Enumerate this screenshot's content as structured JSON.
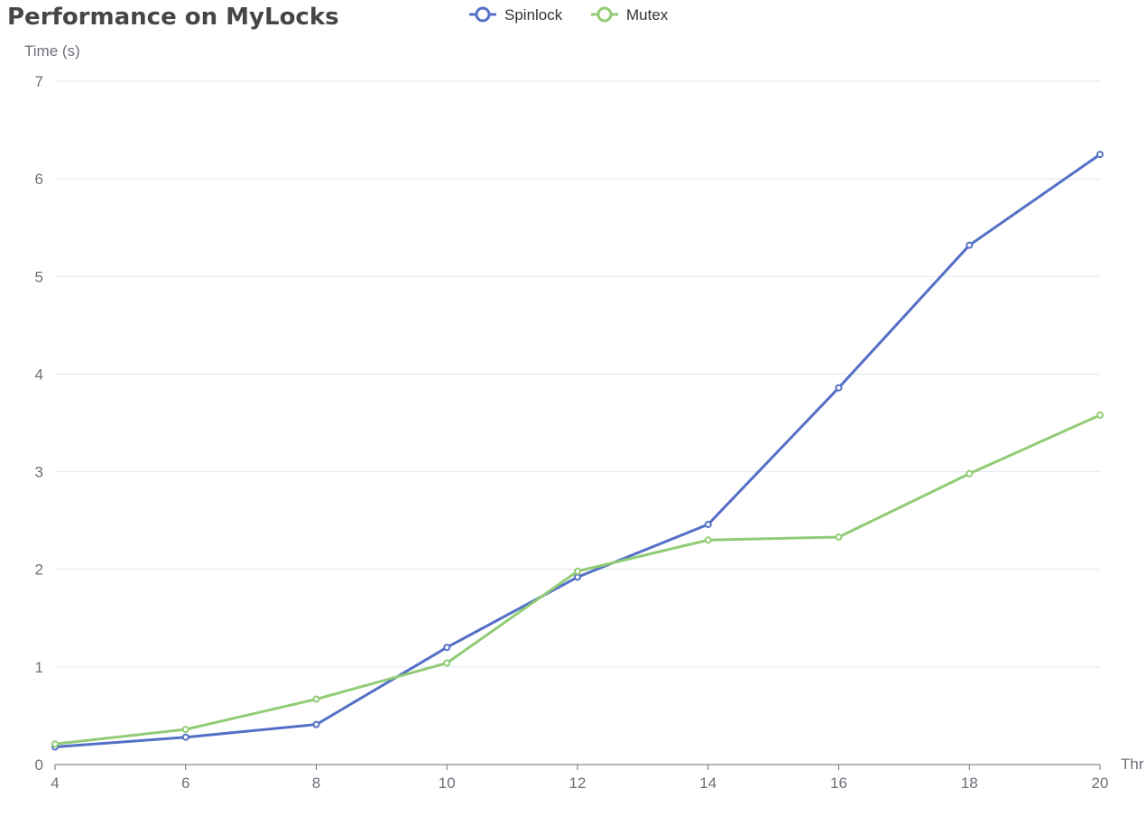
{
  "chart_data": {
    "type": "line",
    "title": "Performance on MyLocks",
    "xlabel": "Thr",
    "ylabel": "Time (s)",
    "x": [
      4,
      6,
      8,
      10,
      12,
      14,
      16,
      18,
      20
    ],
    "xlim": [
      4,
      20
    ],
    "ylim": [
      0,
      7
    ],
    "y_ticks": [
      0,
      1,
      2,
      3,
      4,
      5,
      6,
      7
    ],
    "grid": true,
    "legend_position": "top-center",
    "series": [
      {
        "name": "Spinlock",
        "color": "#5470c6",
        "values": [
          0.18,
          0.28,
          0.41,
          1.2,
          1.92,
          2.46,
          3.86,
          5.32,
          6.25
        ]
      },
      {
        "name": "Mutex",
        "color": "#91cc75",
        "values": [
          0.21,
          0.36,
          0.67,
          1.04,
          1.98,
          2.3,
          2.33,
          2.98,
          3.58
        ]
      }
    ]
  }
}
